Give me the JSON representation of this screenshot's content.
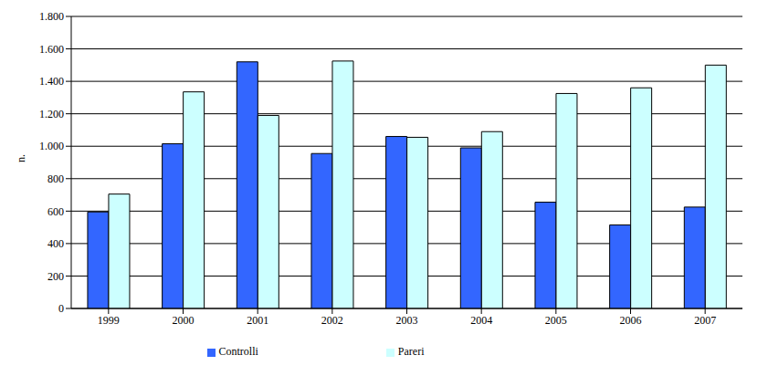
{
  "chart_data": {
    "type": "bar",
    "ylabel": "n.",
    "categories": [
      "1999",
      "2000",
      "2001",
      "2002",
      "2003",
      "2004",
      "2005",
      "2006",
      "2007"
    ],
    "series": [
      {
        "name": "Controlli",
        "color": "#3366ff",
        "values": [
          595,
          1015,
          1520,
          955,
          1060,
          990,
          655,
          515,
          625
        ]
      },
      {
        "name": "Pareri",
        "color": "#ccffff",
        "values": [
          705,
          1335,
          1190,
          1525,
          1055,
          1090,
          1325,
          1360,
          1500
        ]
      }
    ],
    "ylim": [
      0,
      1800
    ],
    "yticks": [
      0,
      200,
      400,
      600,
      800,
      {
        "value": 1000,
        "label": "1.000"
      },
      {
        "value": 1200,
        "label": "1.200"
      },
      {
        "value": 1400,
        "label": "1.400"
      },
      {
        "value": 1600,
        "label": "1.600"
      },
      {
        "value": 1800,
        "label": "1.800"
      }
    ],
    "grid": true,
    "legend": "bottom"
  }
}
